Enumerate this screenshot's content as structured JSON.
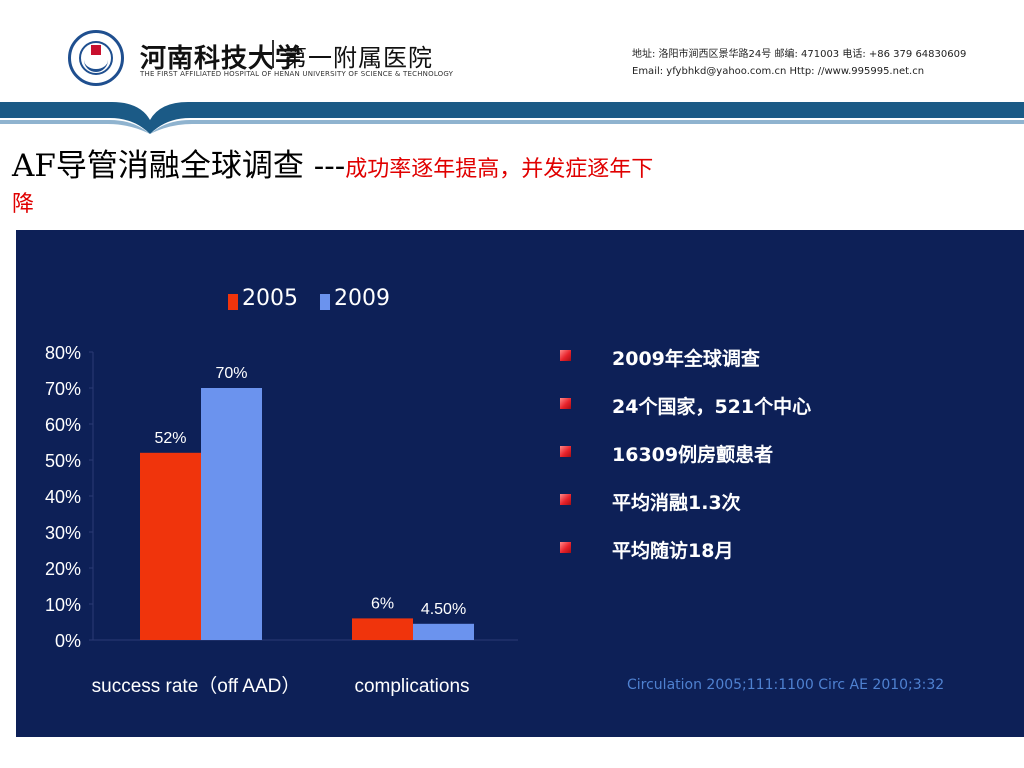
{
  "header": {
    "logo_name": "河南科技大学",
    "logo_sub": "第一附属医院",
    "logo_en": "THE FIRST AFFILIATED HOSPITAL OF HENAN UNIVERSITY OF SCIENCE & TECHNOLOGY",
    "contact_line1": "地址: 洛阳市涧西区景华路24号    邮编: 471003     电话: +86  379  64830609",
    "contact_line2": "Email: yfybhkd@yahoo.com.cn   Http: //www.995995.net.cn"
  },
  "slide": {
    "title_main": "AF导管消融全球调查 ---",
    "title_red": "成功率逐年提高，并发症逐年下",
    "title_red_cont": "降"
  },
  "bullets": [
    "2009年全球调查",
    "24个国家，521个中心",
    "16309例房颤患者",
    "平均消融1.3次",
    "平均随访18月"
  ],
  "citation": "Circulation 2005;111:1100 Circ AE 2010;3:32",
  "colors": {
    "panel": "#0d2057",
    "series_2005": "#f0340c",
    "series_2009": "#6b93ee",
    "bullet": "#e8222b",
    "citation": "#4f81d0",
    "title_red": "#e00000"
  },
  "chart_data": {
    "type": "bar",
    "categories": [
      "success rate（off AAD）",
      "complications"
    ],
    "series": [
      {
        "name": "2005",
        "values": [
          52,
          6
        ],
        "labels": [
          "52%",
          "6%"
        ]
      },
      {
        "name": "2009",
        "values": [
          70,
          4.5
        ],
        "labels": [
          "70%",
          "4.50%"
        ]
      }
    ],
    "yticks": [
      "0%",
      "10%",
      "20%",
      "30%",
      "40%",
      "50%",
      "60%",
      "70%",
      "80%"
    ],
    "ylim": [
      0,
      80
    ],
    "legend": "top",
    "grid": false
  }
}
